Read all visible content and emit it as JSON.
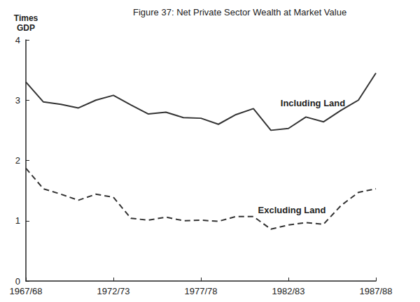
{
  "chart_data": {
    "type": "line",
    "title": "Figure 37: Net Private Sector Wealth at Market Value",
    "y_label": "Times\nGDP",
    "categories": [
      "1967/68",
      null,
      null,
      null,
      null,
      "1972/73",
      null,
      null,
      null,
      null,
      "1977/78",
      null,
      null,
      null,
      null,
      "1982/83",
      null,
      null,
      null,
      null,
      "1987/88"
    ],
    "series": [
      {
        "name": "Including Land",
        "color": "#333333",
        "line_style": "solid",
        "values": [
          3.3,
          2.97,
          2.93,
          2.87,
          3.0,
          3.08,
          2.92,
          2.77,
          2.8,
          2.71,
          2.7,
          2.6,
          2.76,
          2.86,
          2.5,
          2.53,
          2.72,
          2.64,
          2.83,
          3.0,
          3.45
        ]
      },
      {
        "name": "Excluding Land",
        "color": "#333333",
        "line_style": "dashed",
        "values": [
          1.87,
          1.53,
          1.44,
          1.34,
          1.44,
          1.39,
          1.04,
          1.01,
          1.06,
          1.0,
          1.01,
          0.99,
          1.07,
          1.07,
          0.86,
          0.93,
          0.97,
          0.94,
          1.25,
          1.47,
          1.53
        ]
      }
    ],
    "ylim": [
      0,
      4
    ],
    "yticks": [
      0,
      1,
      2,
      3,
      4
    ],
    "grid": false
  }
}
